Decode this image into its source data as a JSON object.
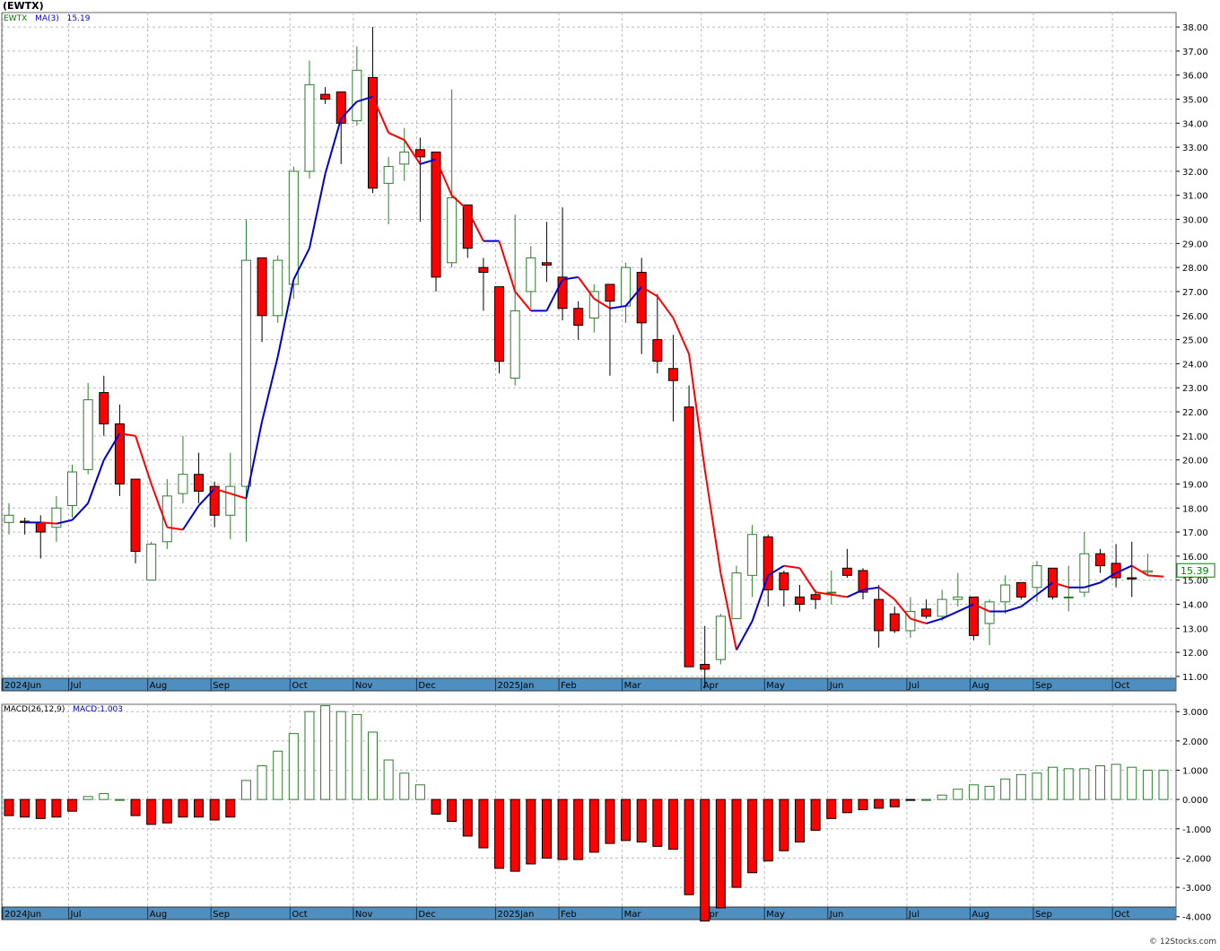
{
  "title": "(EWTX)",
  "copyright": "© 12Stocks.com",
  "price_panel": {
    "symbol_label": "EWTX",
    "ma_label": "MA(3)",
    "ma_value_label": "15.19",
    "last_price_label": "15.39",
    "colors": {
      "up": "#2e7d2e",
      "down": "#ff0000",
      "ma_up": "#0000cc",
      "ma_down": "#ff0000",
      "axis_band": "#4f8fbf",
      "price_tag": "#008000"
    }
  },
  "macd_panel": {
    "label": "MACD(26,12,9)",
    "value_label": "MACD:1.003"
  },
  "x_labels": [
    "2024Jun",
    "Jul",
    "Aug",
    "Sep",
    "Oct",
    "Nov",
    "Dec",
    "2025Jan",
    "Feb",
    "Mar",
    "Apr",
    "May",
    "Jun",
    "Jul",
    "Aug",
    "Sep",
    "Oct"
  ],
  "chart_data": [
    {
      "type": "candlestick",
      "title": "(EWTX)",
      "ylim": [
        10.4,
        38.6
      ],
      "y_ticks": [
        "11.00",
        "12.00",
        "13.00",
        "14.00",
        "15.00",
        "16.00",
        "17.00",
        "18.00",
        "19.00",
        "20.00",
        "21.00",
        "22.00",
        "23.00",
        "24.00",
        "25.00",
        "26.00",
        "27.00",
        "28.00",
        "29.00",
        "30.00",
        "31.00",
        "32.00",
        "33.00",
        "34.00",
        "35.00",
        "36.00",
        "37.00",
        "38.00"
      ],
      "candles": [
        {
          "o": 17.4,
          "h": 18.2,
          "l": 16.9,
          "c": 17.7
        },
        {
          "o": 17.45,
          "h": 17.6,
          "l": 16.9,
          "c": 17.4
        },
        {
          "o": 17.4,
          "h": 17.7,
          "l": 15.9,
          "c": 17.0
        },
        {
          "o": 17.2,
          "h": 18.5,
          "l": 16.6,
          "c": 18.0
        },
        {
          "o": 18.1,
          "h": 19.8,
          "l": 17.6,
          "c": 19.5
        },
        {
          "o": 19.6,
          "h": 23.2,
          "l": 19.4,
          "c": 22.5
        },
        {
          "o": 22.8,
          "h": 23.5,
          "l": 21.0,
          "c": 21.5
        },
        {
          "o": 21.5,
          "h": 22.3,
          "l": 18.5,
          "c": 19.0
        },
        {
          "o": 19.2,
          "h": 19.2,
          "l": 15.7,
          "c": 16.2
        },
        {
          "o": 15.0,
          "h": 16.6,
          "l": 15.0,
          "c": 16.5
        },
        {
          "o": 16.6,
          "h": 19.2,
          "l": 16.3,
          "c": 18.5
        },
        {
          "o": 18.6,
          "h": 21.0,
          "l": 18.2,
          "c": 19.4
        },
        {
          "o": 19.4,
          "h": 20.3,
          "l": 18.2,
          "c": 18.7
        },
        {
          "o": 18.9,
          "h": 19.1,
          "l": 17.2,
          "c": 17.7
        },
        {
          "o": 17.7,
          "h": 20.3,
          "l": 16.7,
          "c": 18.9
        },
        {
          "o": 18.9,
          "h": 30.0,
          "l": 16.6,
          "c": 28.3
        },
        {
          "o": 28.4,
          "h": 28.4,
          "l": 24.9,
          "c": 26.0
        },
        {
          "o": 26.0,
          "h": 28.5,
          "l": 25.7,
          "c": 28.3
        },
        {
          "o": 27.3,
          "h": 32.2,
          "l": 26.7,
          "c": 32.0
        },
        {
          "o": 32.0,
          "h": 36.6,
          "l": 31.7,
          "c": 35.6
        },
        {
          "o": 35.2,
          "h": 35.5,
          "l": 34.8,
          "c": 35.0
        },
        {
          "o": 35.3,
          "h": 35.3,
          "l": 32.3,
          "c": 34.0
        },
        {
          "o": 34.1,
          "h": 37.2,
          "l": 33.9,
          "c": 36.2
        },
        {
          "o": 35.9,
          "h": 38.0,
          "l": 31.1,
          "c": 31.3
        },
        {
          "o": 31.5,
          "h": 32.6,
          "l": 29.8,
          "c": 32.2
        },
        {
          "o": 32.3,
          "h": 33.8,
          "l": 31.6,
          "c": 32.8
        },
        {
          "o": 32.9,
          "h": 33.4,
          "l": 29.9,
          "c": 32.6
        },
        {
          "o": 32.8,
          "h": 32.8,
          "l": 27.0,
          "c": 27.6
        },
        {
          "o": 28.2,
          "h": 35.4,
          "l": 28.0,
          "c": 30.9
        },
        {
          "o": 30.6,
          "h": 30.6,
          "l": 28.4,
          "c": 28.8
        },
        {
          "o": 28.0,
          "h": 28.4,
          "l": 26.2,
          "c": 27.8
        },
        {
          "o": 27.2,
          "h": 27.2,
          "l": 23.6,
          "c": 24.1
        },
        {
          "o": 23.4,
          "h": 30.2,
          "l": 23.1,
          "c": 26.2
        },
        {
          "o": 27.0,
          "h": 28.9,
          "l": 26.3,
          "c": 28.4
        },
        {
          "o": 28.2,
          "h": 29.9,
          "l": 27.4,
          "c": 28.1
        },
        {
          "o": 27.6,
          "h": 30.5,
          "l": 25.8,
          "c": 26.3
        },
        {
          "o": 26.3,
          "h": 26.6,
          "l": 25.0,
          "c": 25.6
        },
        {
          "o": 25.9,
          "h": 27.3,
          "l": 25.3,
          "c": 27.0
        },
        {
          "o": 27.3,
          "h": 27.3,
          "l": 23.5,
          "c": 26.6
        },
        {
          "o": 26.4,
          "h": 28.2,
          "l": 25.7,
          "c": 28.0
        },
        {
          "o": 27.8,
          "h": 28.4,
          "l": 24.4,
          "c": 25.7
        },
        {
          "o": 25.0,
          "h": 26.9,
          "l": 23.6,
          "c": 24.1
        },
        {
          "o": 23.8,
          "h": 25.2,
          "l": 21.6,
          "c": 23.3
        },
        {
          "o": 22.2,
          "h": 23.1,
          "l": 11.4,
          "c": 11.4
        },
        {
          "o": 11.5,
          "h": 13.1,
          "l": 10.5,
          "c": 11.3
        },
        {
          "o": 11.7,
          "h": 13.6,
          "l": 11.5,
          "c": 13.5
        },
        {
          "o": 13.4,
          "h": 15.6,
          "l": 13.4,
          "c": 15.3
        },
        {
          "o": 15.2,
          "h": 17.3,
          "l": 14.3,
          "c": 16.9
        },
        {
          "o": 16.8,
          "h": 16.9,
          "l": 13.9,
          "c": 14.6
        },
        {
          "o": 15.3,
          "h": 15.4,
          "l": 13.9,
          "c": 14.6
        },
        {
          "o": 14.3,
          "h": 14.8,
          "l": 13.7,
          "c": 14.0
        },
        {
          "o": 14.4,
          "h": 14.6,
          "l": 13.8,
          "c": 14.2
        },
        {
          "o": 14.5,
          "h": 15.4,
          "l": 14.0,
          "c": 14.5
        },
        {
          "o": 15.5,
          "h": 16.3,
          "l": 15.1,
          "c": 15.2
        },
        {
          "o": 15.4,
          "h": 15.5,
          "l": 14.2,
          "c": 14.5
        },
        {
          "o": 14.2,
          "h": 14.8,
          "l": 12.2,
          "c": 12.9
        },
        {
          "o": 13.6,
          "h": 13.9,
          "l": 12.8,
          "c": 12.9
        },
        {
          "o": 12.9,
          "h": 14.3,
          "l": 12.6,
          "c": 13.7
        },
        {
          "o": 13.8,
          "h": 14.2,
          "l": 13.4,
          "c": 13.5
        },
        {
          "o": 13.5,
          "h": 14.6,
          "l": 13.3,
          "c": 14.2
        },
        {
          "o": 14.2,
          "h": 15.3,
          "l": 13.9,
          "c": 14.3
        },
        {
          "o": 14.3,
          "h": 14.3,
          "l": 12.5,
          "c": 12.7
        },
        {
          "o": 13.2,
          "h": 14.2,
          "l": 12.3,
          "c": 14.1
        },
        {
          "o": 14.1,
          "h": 15.2,
          "l": 13.6,
          "c": 14.8
        },
        {
          "o": 14.9,
          "h": 14.9,
          "l": 14.2,
          "c": 14.3
        },
        {
          "o": 14.7,
          "h": 15.8,
          "l": 14.1,
          "c": 15.6
        },
        {
          "o": 15.5,
          "h": 15.5,
          "l": 14.2,
          "c": 14.3
        },
        {
          "o": 14.3,
          "h": 15.6,
          "l": 13.7,
          "c": 14.3
        },
        {
          "o": 14.5,
          "h": 17.0,
          "l": 14.3,
          "c": 16.1
        },
        {
          "o": 16.1,
          "h": 16.3,
          "l": 15.3,
          "c": 15.6
        },
        {
          "o": 15.7,
          "h": 16.5,
          "l": 14.7,
          "c": 15.1
        },
        {
          "o": 15.1,
          "h": 16.6,
          "l": 14.3,
          "c": 15.05
        },
        {
          "o": 15.33,
          "h": 16.1,
          "l": 15.2,
          "c": 15.39
        }
      ],
      "ma3": [
        17.4,
        17.4,
        17.35,
        17.5,
        18.2,
        20.0,
        21.1,
        21.0,
        19.0,
        17.2,
        17.1,
        18.1,
        18.8,
        18.6,
        18.4,
        21.6,
        24.3,
        27.5,
        28.8,
        31.9,
        34.2,
        34.9,
        35.1,
        33.6,
        33.3,
        32.3,
        32.5,
        31.0,
        30.4,
        29.1,
        29.1,
        27.0,
        26.2,
        26.2,
        27.5,
        27.6,
        26.7,
        26.3,
        26.4,
        27.2,
        26.8,
        25.9,
        24.4,
        19.6,
        15.3,
        12.1,
        13.3,
        15.2,
        15.6,
        15.5,
        14.5,
        14.4,
        14.3,
        14.6,
        14.7,
        14.2,
        13.4,
        13.2,
        13.4,
        13.7,
        14.0,
        13.7,
        13.7,
        13.9,
        14.4,
        14.9,
        14.7,
        14.7,
        14.9,
        15.3,
        15.6,
        15.2,
        15.15
      ],
      "ma3_last": 15.19
    },
    {
      "type": "bar",
      "title": "MACD(26,12,9)",
      "ylim": [
        -4.1,
        3.25
      ],
      "y_ticks": [
        "3.000",
        "2.000",
        "1.000",
        "0.000",
        "-1.000",
        "-2.000",
        "-3.000",
        "-4.000"
      ],
      "values": [
        -0.55,
        -0.6,
        -0.65,
        -0.6,
        -0.4,
        0.1,
        0.2,
        0.0,
        -0.55,
        -0.85,
        -0.8,
        -0.6,
        -0.6,
        -0.7,
        -0.6,
        0.65,
        1.15,
        1.65,
        2.25,
        3.0,
        3.2,
        3.0,
        2.9,
        2.3,
        1.35,
        0.9,
        0.5,
        -0.5,
        -0.75,
        -1.25,
        -1.65,
        -2.35,
        -2.45,
        -2.2,
        -2.0,
        -2.05,
        -2.05,
        -1.8,
        -1.5,
        -1.4,
        -1.45,
        -1.6,
        -1.7,
        -3.25,
        -4.15,
        -3.7,
        -3.0,
        -2.5,
        -2.1,
        -1.75,
        -1.45,
        -1.05,
        -0.65,
        -0.45,
        -0.35,
        -0.3,
        -0.25,
        -0.02,
        0.0,
        0.15,
        0.35,
        0.5,
        0.45,
        0.7,
        0.85,
        0.9,
        1.1,
        1.05,
        1.05,
        1.15,
        1.2,
        1.1,
        1.0,
        1.0
      ],
      "value_label": "MACD:1.003"
    }
  ]
}
